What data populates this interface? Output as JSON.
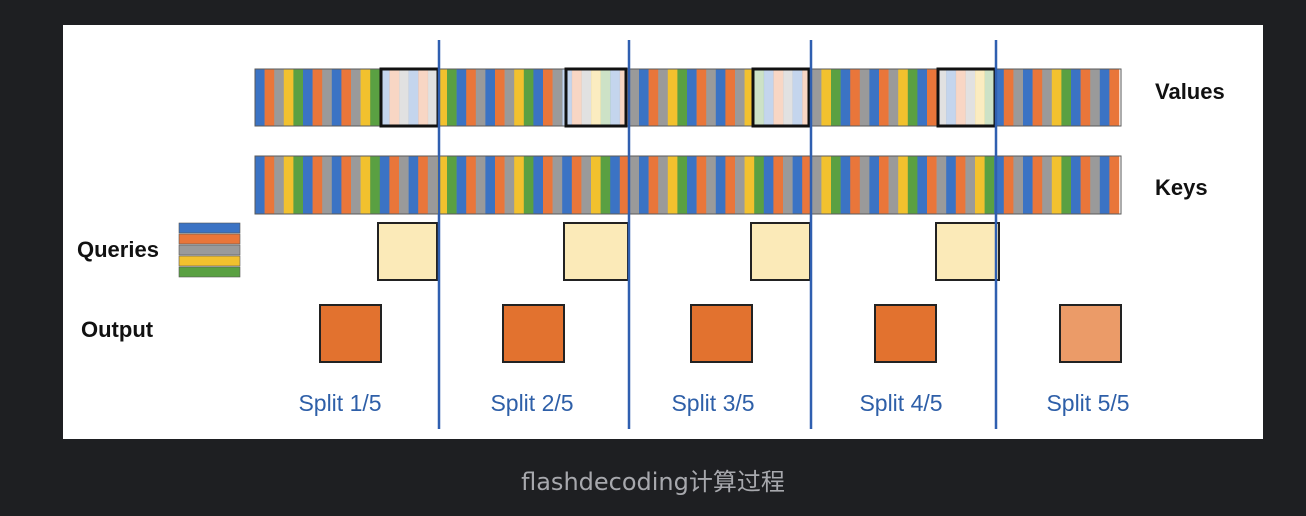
{
  "labels": {
    "values": "Values",
    "keys": "Keys",
    "queries": "Queries",
    "output": "Output"
  },
  "splits": [
    "Split 1/5",
    "Split 2/5",
    "Split 3/5",
    "Split 4/5",
    "Split 5/5"
  ],
  "caption": "flashdecoding计算过程",
  "colors": {
    "stripe_palette": [
      "#3b73c4",
      "#e9763a",
      "#9a9a9a",
      "#f2c12e",
      "#5aa042",
      "#3b73c4",
      "#e9763a",
      "#9a9a9a"
    ],
    "divider": "#2f5fb0",
    "query_fill": "#fbeab8",
    "output_fill": "#e2722f",
    "output_final_fill": "#eb9b68",
    "split_label": "#2e5fa8",
    "background": "#1e1f22",
    "panel": "#ffffff"
  },
  "query_stack_colors": [
    "#3b73c4",
    "#e9763a",
    "#9a9a9a",
    "#f2c12e",
    "#5aa042"
  ]
}
